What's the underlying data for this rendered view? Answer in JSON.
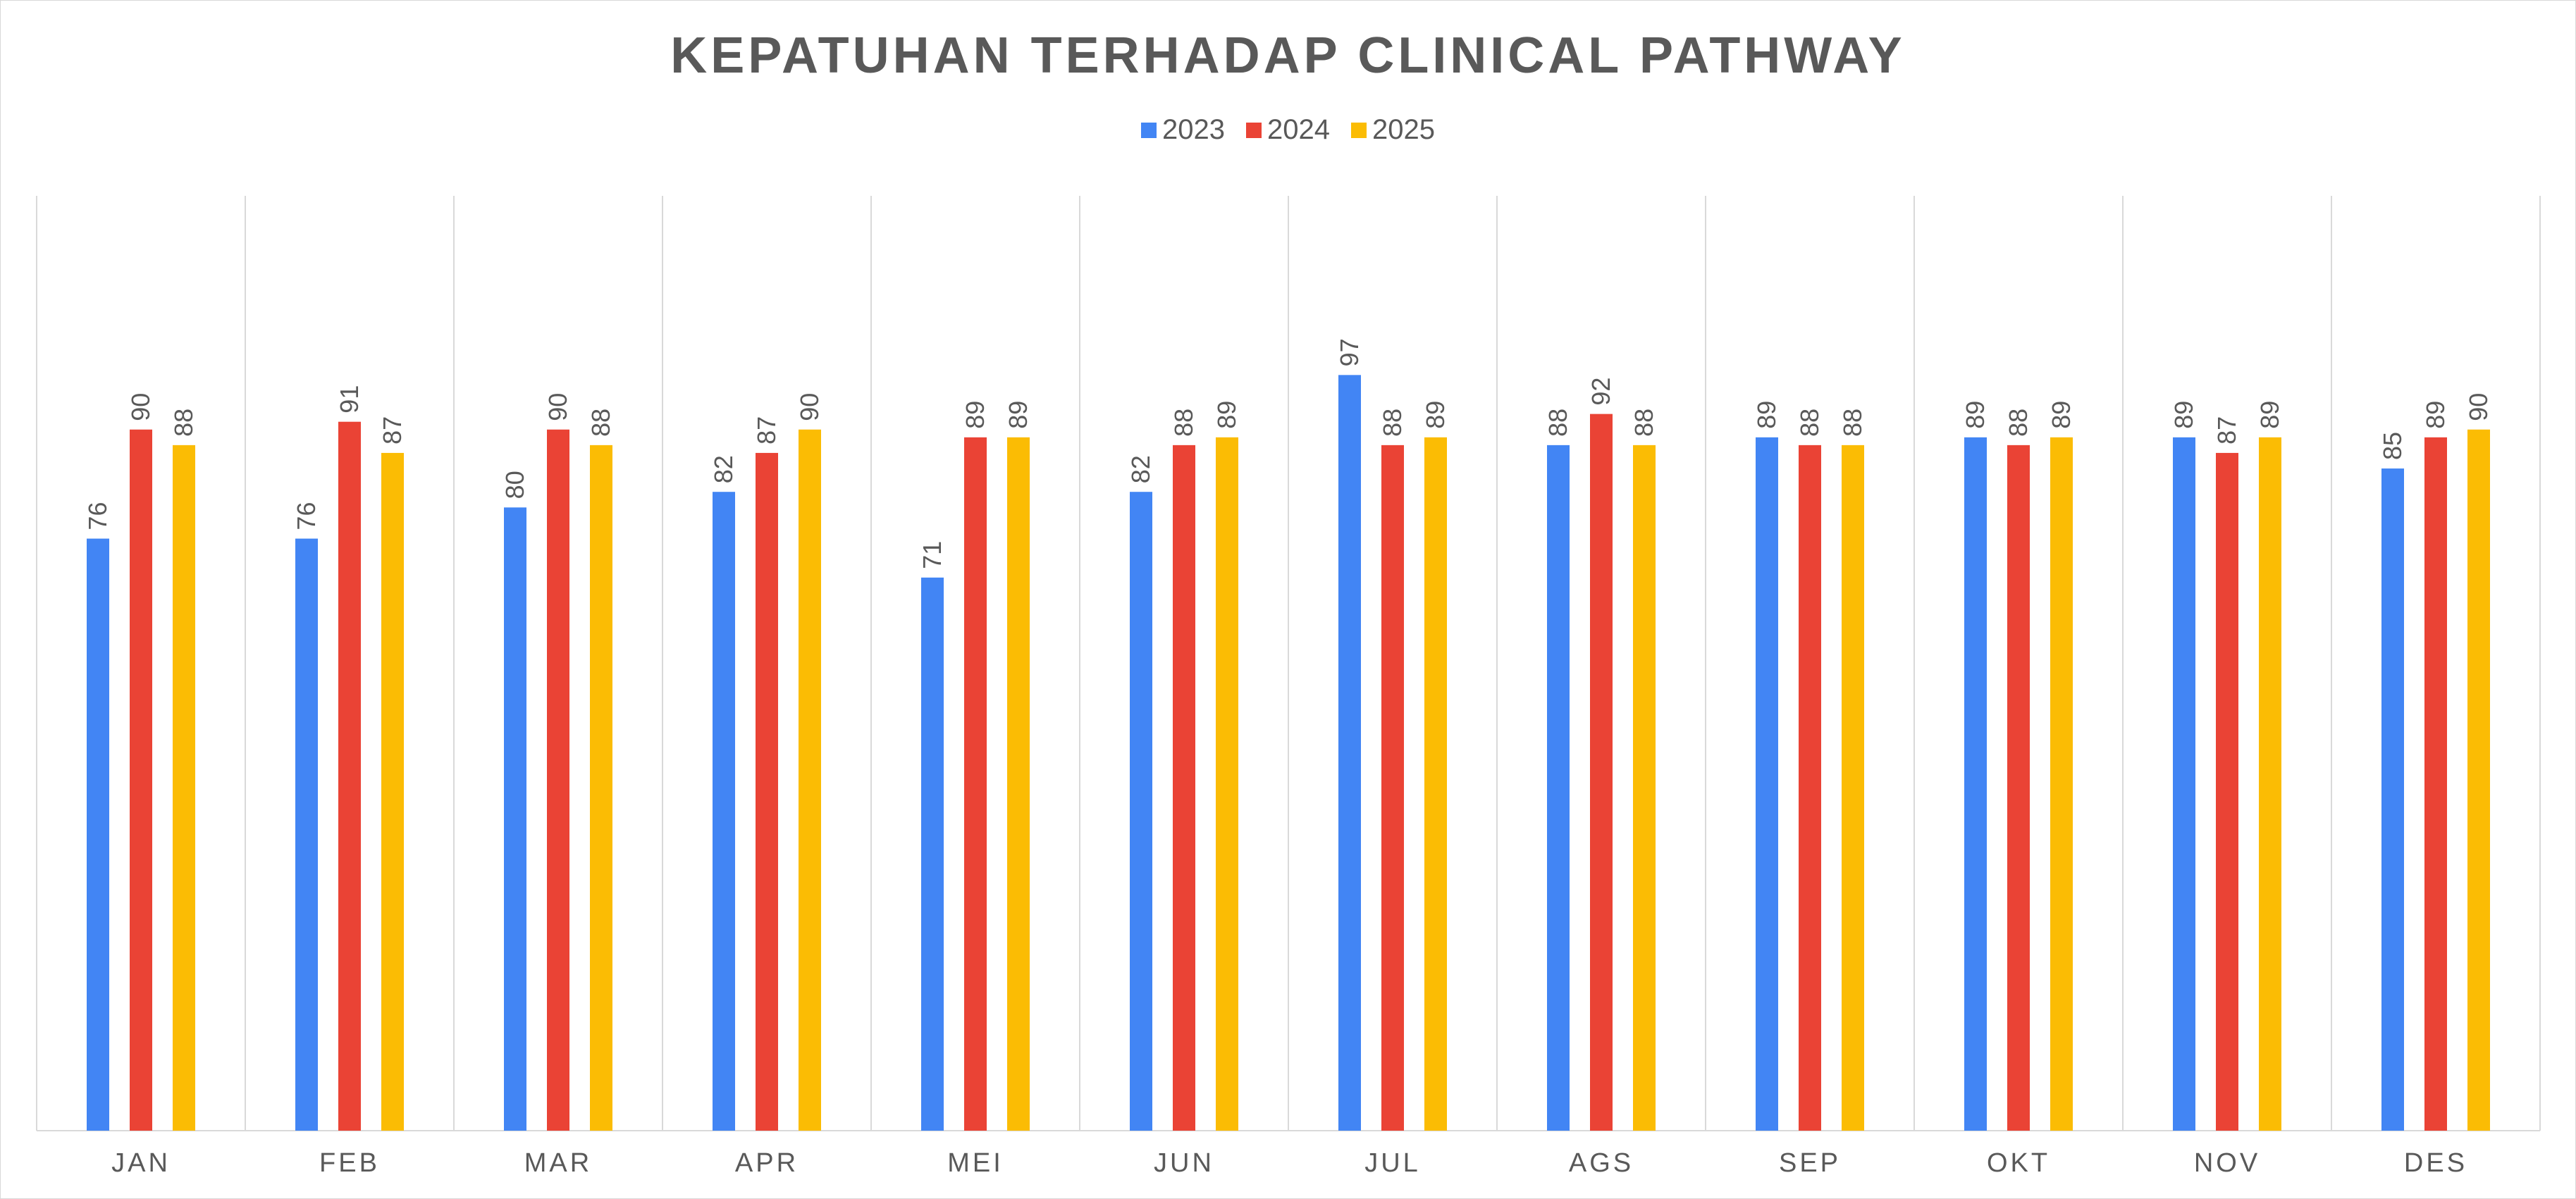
{
  "chart_data": {
    "type": "bar",
    "title": "KEPATUHAN TERHADAP CLINICAL PATHWAY",
    "xlabel": "",
    "ylabel": "",
    "categories": [
      "JAN",
      "FEB",
      "MAR",
      "APR",
      "MEI",
      "JUN",
      "JUL",
      "AGS",
      "SEP",
      "OKT",
      "NOV",
      "DES"
    ],
    "series": [
      {
        "name": "2023",
        "color": "#4285F4",
        "values": [
          76,
          76,
          80,
          82,
          71,
          82,
          97,
          88,
          89,
          89,
          89,
          85
        ]
      },
      {
        "name": "2024",
        "color": "#EA4335",
        "values": [
          90,
          91,
          90,
          87,
          89,
          88,
          88,
          92,
          88,
          88,
          87,
          89
        ]
      },
      {
        "name": "2025",
        "color": "#FBBC04",
        "values": [
          88,
          87,
          88,
          90,
          89,
          89,
          89,
          88,
          88,
          89,
          89,
          90
        ]
      }
    ],
    "data_labels": true,
    "data_label_rotation": "vertical",
    "ylim": [
      0,
      120
    ],
    "y_axis_visible": false,
    "grid": "vertical category separators",
    "legend_position": "top"
  }
}
